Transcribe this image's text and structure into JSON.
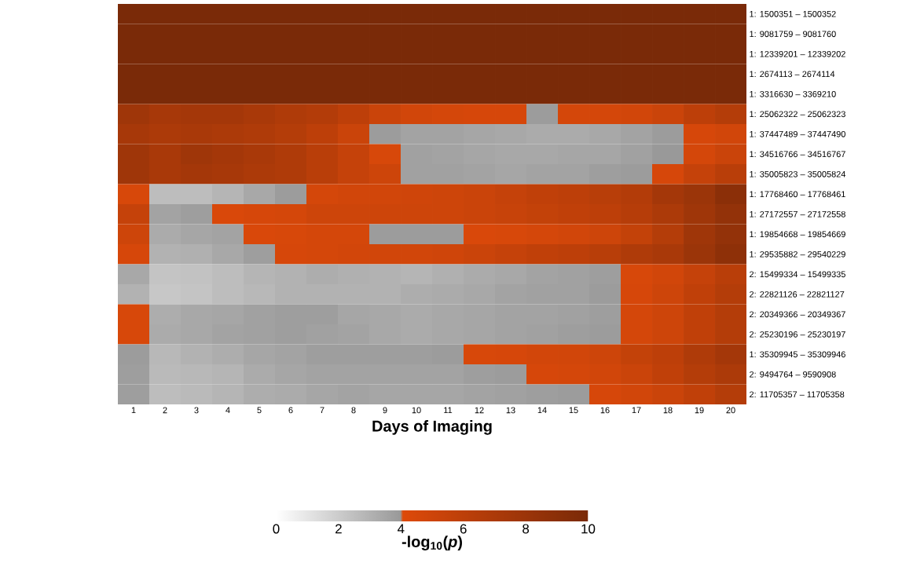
{
  "chart_data": {
    "type": "heatmap",
    "xlabel": "Days of Imaging",
    "clabel": "-log$_{10}$(*p*)",
    "categories": [
      "1",
      "2",
      "3",
      "4",
      "5",
      "6",
      "7",
      "8",
      "9",
      "10",
      "11",
      "12",
      "13",
      "14",
      "15",
      "16",
      "17",
      "18",
      "19",
      "20"
    ],
    "y_categories": [
      "1: 1500351 – 1500352",
      "1: 9081759 – 9081760",
      "1: 12339201 – 12339202",
      "1: 2674113 – 2674114",
      "1: 3316630 – 3369210",
      "1: 25062322 – 25062323",
      "1: 37447489 – 37447490",
      "1: 34516766 – 34516767",
      "1: 35005823 – 35005824",
      "1: 17768460 – 17768461",
      "1: 27172557 – 27172558",
      "1: 19854668 – 19854669",
      "1: 29535882 – 29540229",
      "2: 15499334 – 15499335",
      "2: 22821126 – 22821127",
      "2: 20349366 – 20349367",
      "2: 25230196 – 25230197",
      "1: 35309945 – 35309946",
      "2: 9494764 – 9590908",
      "2: 11705357 – 11705358"
    ],
    "cells": [
      [
        10,
        10,
        10,
        10,
        10,
        10,
        10,
        10,
        10,
        10,
        10,
        10,
        10,
        10,
        10,
        10,
        10,
        10,
        10,
        10
      ],
      [
        10,
        10,
        10,
        10,
        10,
        10,
        10,
        10,
        10,
        10,
        10,
        10,
        10,
        10,
        10,
        10,
        10,
        10,
        10,
        10
      ],
      [
        10,
        10,
        10,
        10,
        10,
        10,
        10,
        10,
        10,
        10,
        10,
        10,
        10,
        10,
        10,
        10,
        10,
        10,
        10,
        10
      ],
      [
        10,
        10,
        10,
        10,
        10,
        10,
        10,
        10,
        10,
        10,
        10,
        10,
        10,
        10,
        10,
        10,
        10,
        10,
        10,
        10
      ],
      [
        10,
        10,
        10,
        10,
        10,
        10,
        10,
        10,
        10,
        10,
        10,
        10,
        10,
        10,
        10,
        10,
        10,
        10,
        10,
        10
      ],
      [
        7.8,
        7.3,
        7.5,
        7.5,
        7.2,
        6.8,
        6.6,
        6,
        5.2,
        4.8,
        4.6,
        4.5,
        4.5,
        3.9,
        4.6,
        4.6,
        4.8,
        5.2,
        6,
        6.5
      ],
      [
        7.3,
        7,
        7.2,
        7,
        6.8,
        6.5,
        6,
        5.2,
        3.9,
        3.6,
        3.6,
        3.5,
        3.4,
        3.3,
        3.3,
        3.4,
        3.6,
        3.9,
        4.5,
        4.8
      ],
      [
        7.8,
        7.2,
        7.8,
        7.5,
        7.2,
        6.8,
        6.2,
        5.5,
        4.4,
        3.7,
        3.6,
        3.5,
        3.4,
        3.4,
        3.5,
        3.5,
        3.7,
        4,
        4.6,
        5.2
      ],
      [
        7.8,
        7.2,
        7.5,
        7.3,
        7,
        6.8,
        6.2,
        5.5,
        5,
        3.7,
        3.7,
        3.6,
        3.5,
        3.6,
        3.6,
        3.8,
        3.9,
        4.5,
        5.5,
        6.2
      ],
      [
        4.4,
        2.6,
        2.6,
        2.9,
        3.4,
        3.9,
        4.6,
        4.8,
        4.8,
        4.9,
        5,
        5.2,
        5.5,
        5.8,
        6,
        6.3,
        6.6,
        7.5,
        8,
        9
      ],
      [
        5.5,
        3.6,
        3.8,
        4.3,
        4.5,
        4.6,
        5,
        5,
        5,
        5,
        5,
        5.2,
        5.4,
        5.6,
        5.8,
        6,
        6.4,
        7,
        7.8,
        8.5
      ],
      [
        5,
        3.3,
        3.5,
        3.6,
        4.3,
        4.4,
        4.6,
        4.6,
        3.9,
        3.9,
        3.9,
        4.3,
        4.4,
        4.6,
        4.8,
        5,
        5.6,
        6.5,
        7.8,
        8.5
      ],
      [
        4.5,
        3,
        3.1,
        3.4,
        3.8,
        4.5,
        4.6,
        4.7,
        4.8,
        4.8,
        4.9,
        5.2,
        5.5,
        5.8,
        6,
        6.3,
        6.8,
        7.2,
        8,
        8.8
      ],
      [
        3.4,
        2.3,
        2.4,
        2.6,
        2.9,
        3,
        3.2,
        3.1,
        3,
        2.9,
        3.1,
        3.3,
        3.4,
        3.6,
        3.7,
        3.8,
        4.4,
        4.8,
        5.5,
        6.2
      ],
      [
        3,
        2.2,
        2.3,
        2.6,
        2.8,
        3,
        3,
        3,
        3,
        3.2,
        3.3,
        3.4,
        3.6,
        3.7,
        3.7,
        3.9,
        4.5,
        5,
        5.8,
        6.5
      ],
      [
        4.4,
        3.2,
        3.4,
        3.5,
        3.7,
        3.8,
        3.8,
        3.5,
        3.4,
        3.3,
        3.4,
        3.5,
        3.6,
        3.6,
        3.7,
        3.8,
        4.6,
        5,
        5.8,
        6.5
      ],
      [
        4.4,
        3.3,
        3.4,
        3.6,
        3.7,
        3.8,
        3.7,
        3.6,
        3.4,
        3.3,
        3.4,
        3.5,
        3.6,
        3.7,
        3.8,
        3.9,
        4.6,
        5,
        5.8,
        6.5
      ],
      [
        3.9,
        2.8,
        3,
        3.2,
        3.5,
        3.6,
        3.8,
        3.8,
        3.8,
        3.8,
        3.9,
        4.4,
        4.5,
        4.7,
        4.8,
        5,
        5.6,
        6,
        6.8,
        7.5
      ],
      [
        3.8,
        2.7,
        2.8,
        2.9,
        3.3,
        3.5,
        3.6,
        3.6,
        3.6,
        3.6,
        3.6,
        3.8,
        3.9,
        4.5,
        4.6,
        4.8,
        5.2,
        5.8,
        6.5,
        7
      ],
      [
        3.8,
        2.6,
        2.7,
        2.9,
        3.2,
        3.3,
        3.5,
        3.6,
        3.5,
        3.5,
        3.5,
        3.6,
        3.7,
        3.8,
        3.9,
        4.5,
        4.8,
        5.2,
        5.8,
        6.5
      ]
    ],
    "clim": [
      0,
      10
    ],
    "cticks": [
      0,
      2,
      4,
      6,
      8,
      10
    ]
  }
}
